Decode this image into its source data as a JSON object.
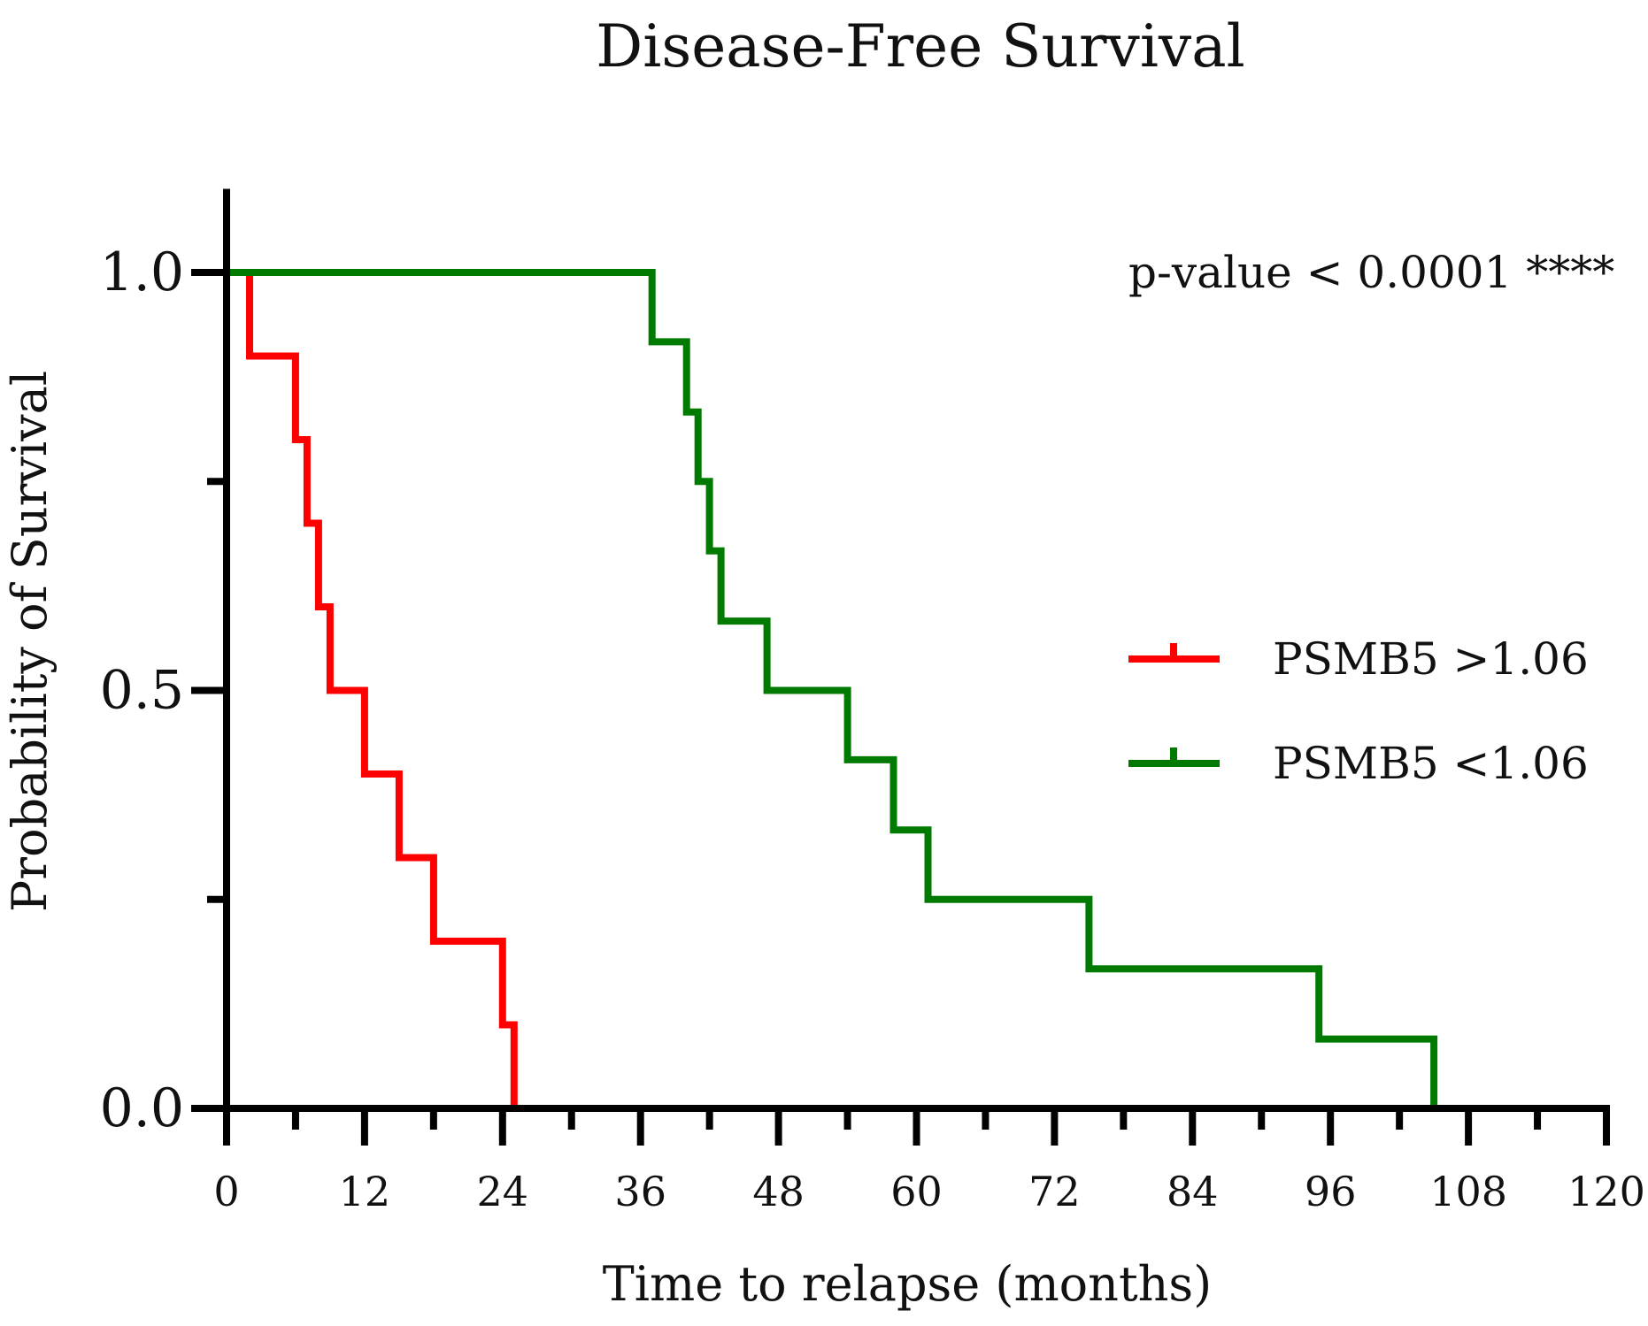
{
  "chart_data": {
    "type": "line",
    "subtype": "kaplan-meier-step",
    "title": "Disease-Free Survival",
    "xlabel": "Time to relapse (months)",
    "ylabel": "Probability of Survival",
    "xlim": [
      0,
      120
    ],
    "ylim": [
      0,
      1.1
    ],
    "x_ticks": [
      0,
      12,
      24,
      36,
      48,
      60,
      72,
      84,
      96,
      108,
      120
    ],
    "x_tick_labels": [
      "0",
      "12",
      "24",
      "36",
      "48",
      "60",
      "72",
      "84",
      "96",
      "108",
      "120"
    ],
    "y_ticks": [
      0.0,
      0.5,
      1.0
    ],
    "y_tick_labels": [
      "0.0",
      "0.5",
      "1.0"
    ],
    "y_minor_ticks": [
      0.25,
      0.75
    ],
    "grid": false,
    "legend_position": "right",
    "annotation": "p-value < 0.0001 ****",
    "series": [
      {
        "name": "PSMB5 >1.06",
        "color": "#ff0000",
        "points": [
          [
            0,
            1.0
          ],
          [
            2,
            1.0
          ],
          [
            2,
            0.9
          ],
          [
            6,
            0.9
          ],
          [
            6,
            0.8
          ],
          [
            7,
            0.8
          ],
          [
            7,
            0.7
          ],
          [
            8,
            0.7
          ],
          [
            8,
            0.6
          ],
          [
            9,
            0.6
          ],
          [
            9,
            0.5
          ],
          [
            12,
            0.5
          ],
          [
            12,
            0.4
          ],
          [
            15,
            0.4
          ],
          [
            15,
            0.3
          ],
          [
            18,
            0.3
          ],
          [
            18,
            0.2
          ],
          [
            24,
            0.2
          ],
          [
            24,
            0.1
          ],
          [
            25,
            0.1
          ],
          [
            25,
            0.0
          ]
        ]
      },
      {
        "name": "PSMB5 <1.06",
        "color": "#007a00",
        "points": [
          [
            0,
            1.0
          ],
          [
            37,
            1.0
          ],
          [
            37,
            0.917
          ],
          [
            40,
            0.917
          ],
          [
            40,
            0.833
          ],
          [
            41,
            0.833
          ],
          [
            41,
            0.75
          ],
          [
            42,
            0.75
          ],
          [
            42,
            0.667
          ],
          [
            43,
            0.667
          ],
          [
            43,
            0.583
          ],
          [
            47,
            0.583
          ],
          [
            47,
            0.5
          ],
          [
            54,
            0.5
          ],
          [
            54,
            0.417
          ],
          [
            58,
            0.417
          ],
          [
            58,
            0.333
          ],
          [
            61,
            0.333
          ],
          [
            61,
            0.25
          ],
          [
            75,
            0.25
          ],
          [
            75,
            0.167
          ],
          [
            95,
            0.167
          ],
          [
            95,
            0.083
          ],
          [
            105,
            0.083
          ],
          [
            105,
            0.0
          ]
        ]
      }
    ]
  }
}
